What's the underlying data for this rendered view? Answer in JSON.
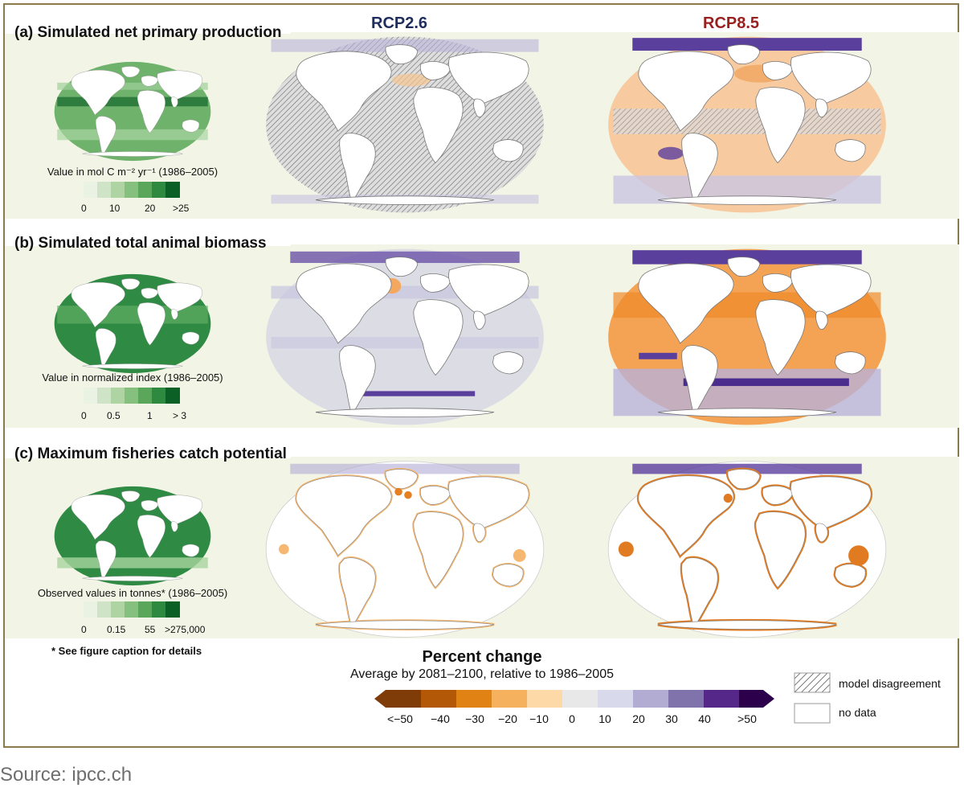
{
  "columns": [
    "RCP2.6",
    "RCP8.5"
  ],
  "column_colors": {
    "rcp26": "#1f2d5c",
    "rcp85": "#9a1f1f"
  },
  "panels": [
    {
      "title": "(a) Simulated net primary production",
      "legend_caption": "Value in  mol C m⁻² yr⁻¹ (1986–2005)",
      "scale_labels": [
        "0",
        "10",
        "20",
        ">25"
      ],
      "greens": [
        "#eaf2e3",
        "#cfe4c6",
        "#aed4a4",
        "#86c07f",
        "#5aa75c",
        "#2e8a3f",
        "#0b6026"
      ],
      "rcp26_tint": "#e3e3e3",
      "rcp85_tint": "#f7caa0"
    },
    {
      "title": "(b) Simulated total animal biomass",
      "legend_caption": "Value in normalized index (1986–2005)",
      "scale_labels": [
        "0",
        "0.5",
        "1",
        "> 3"
      ],
      "greens": [
        "#eaf2e3",
        "#cfe4c6",
        "#aed4a4",
        "#86c07f",
        "#5aa75c",
        "#2e8a3f",
        "#0b6026"
      ],
      "rcp26_tint": "#e0e0e8",
      "rcp85_tint": "#f4a254"
    },
    {
      "title": "(c) Maximum fisheries catch potential",
      "legend_caption": "Observed values in tonnes* (1986–2005)",
      "scale_labels": [
        "0",
        "0.15",
        "55",
        ">275,000"
      ],
      "greens": [
        "#eaf2e3",
        "#cfe4c6",
        "#aed4a4",
        "#86c07f",
        "#5aa75c",
        "#2e8a3f",
        "#0b6026"
      ],
      "rcp26_tint": "#ffffff",
      "rcp85_tint": "#ffffff"
    }
  ],
  "footnote": "* See figure caption for details",
  "percent_change": {
    "title": "Percent change",
    "subtitle": "Average by 2081–2100, relative to 1986–2005",
    "labels": [
      "<−50",
      "−40",
      "−30",
      "−20",
      "−10",
      "0",
      "10",
      "20",
      "30",
      "40",
      ">50"
    ],
    "colors": [
      "#7f3b08",
      "#b35806",
      "#e08214",
      "#f6b15f",
      "#fdd9a8",
      "#e8e8e8",
      "#d8daeb",
      "#b2abd2",
      "#8073ac",
      "#542788",
      "#2d004b"
    ]
  },
  "key": {
    "disagreement": "model disagreement",
    "no_data": "no data"
  },
  "source": "Source: ipcc.ch"
}
